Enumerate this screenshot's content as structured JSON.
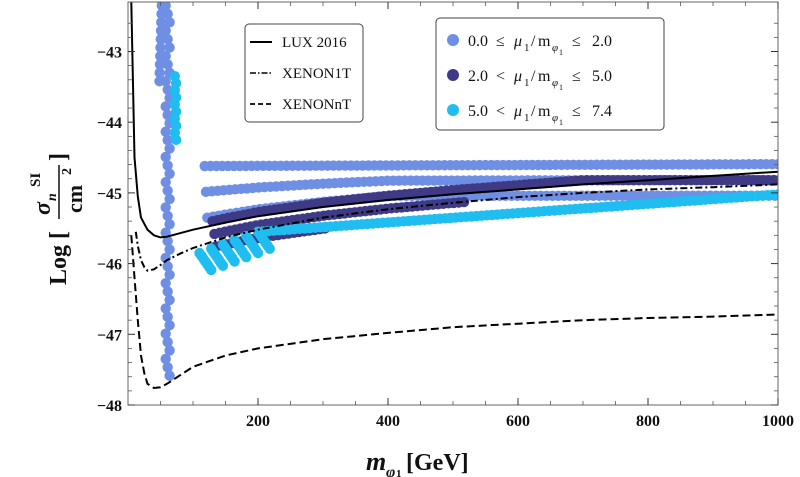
{
  "chart_data": {
    "type": "scatter",
    "xlabel": "m_φ1 [GeV]",
    "ylabel": "Log [σ_n^SI / cm^2]",
    "xlim": [
      0,
      1000
    ],
    "ylim": [
      -48,
      -42.3
    ],
    "x_ticks": [
      200,
      400,
      600,
      800,
      1000
    ],
    "y_ticks": [
      -48,
      -47,
      -46,
      -45,
      -44,
      -43
    ],
    "x_tick_labels": [
      "200",
      "400",
      "600",
      "800",
      "1000"
    ],
    "y_tick_labels": [
      "−48",
      "−47",
      "−46",
      "−45",
      "−44",
      "−43"
    ],
    "curves": [
      {
        "name": "LUX 2016",
        "style": "solid",
        "color": "#000000",
        "x": [
          5,
          10,
          15,
          20,
          30,
          40,
          50,
          60,
          80,
          100,
          150,
          200,
          300,
          400,
          500,
          600,
          700,
          800,
          900,
          1000
        ],
        "y": [
          -42.3,
          -44.5,
          -45.05,
          -45.35,
          -45.52,
          -45.6,
          -45.63,
          -45.62,
          -45.57,
          -45.52,
          -45.42,
          -45.33,
          -45.2,
          -45.1,
          -45.02,
          -44.95,
          -44.88,
          -44.82,
          -44.76,
          -44.7
        ]
      },
      {
        "name": "XENON1T",
        "style": "dashdot",
        "color": "#000000",
        "x": [
          12,
          15,
          20,
          25,
          30,
          40,
          50,
          60,
          80,
          100,
          150,
          200,
          300,
          400,
          500,
          600,
          700,
          800,
          900,
          1000
        ],
        "y": [
          -45.55,
          -45.75,
          -45.95,
          -46.05,
          -46.1,
          -46.08,
          -46.02,
          -45.95,
          -45.86,
          -45.78,
          -45.63,
          -45.52,
          -45.35,
          -45.23,
          -45.14,
          -45.06,
          -45.0,
          -44.95,
          -44.92,
          -44.88
        ]
      },
      {
        "name": "XENONnT",
        "style": "dashed",
        "color": "#000000",
        "x": [
          5,
          10,
          15,
          20,
          25,
          30,
          40,
          50,
          60,
          80,
          100,
          150,
          200,
          300,
          400,
          500,
          600,
          700,
          800,
          900,
          1000
        ],
        "y": [
          -45.6,
          -46.2,
          -46.8,
          -47.3,
          -47.55,
          -47.7,
          -47.76,
          -47.75,
          -47.7,
          -47.58,
          -47.46,
          -47.3,
          -47.2,
          -47.07,
          -46.98,
          -46.9,
          -46.85,
          -46.8,
          -46.77,
          -46.75,
          -46.72
        ]
      }
    ],
    "series": [
      {
        "name": "0.0 ≤ μ1/mφ1 ≤ 2.0",
        "color": "#6f8fe4"
      },
      {
        "name": "2.0 < μ1/mφ1 ≤ 5.0",
        "color": "#3f3a86"
      },
      {
        "name": "5.0 < μ1/mφ1 ≤ 7.4",
        "color": "#1fbdf0"
      }
    ]
  },
  "axes": {
    "x_title_main": "m",
    "x_title_sub": "φ",
    "x_title_subsub": "1",
    "x_title_unit": "[GeV]",
    "y_title_log": "Log [",
    "y_title_sigma": "σ",
    "y_title_n": "n",
    "y_title_si": "SI",
    "y_title_den": "cm",
    "y_title_pow": "2",
    "y_title_close": "]"
  },
  "legend_lines": {
    "lux": "LUX 2016",
    "xenon1t": "XENON1T",
    "xenonnt": "XENONnT"
  },
  "legend_points": {
    "s1": {
      "lo": "0.0",
      "op1": "≤",
      "mu": "μ",
      "mu_sub": "1",
      "slash": "/",
      "m": "m",
      "phi": "φ",
      "phi_sub": "1",
      "op2": "≤",
      "hi": "2.0"
    },
    "s2": {
      "lo": "2.0",
      "op1": "<",
      "mu": "μ",
      "mu_sub": "1",
      "slash": "/",
      "m": "m",
      "phi": "φ",
      "phi_sub": "1",
      "op2": "≤",
      "hi": "5.0"
    },
    "s3": {
      "lo": "5.0",
      "op1": "<",
      "mu": "μ",
      "mu_sub": "1",
      "slash": "/",
      "m": "m",
      "phi": "φ",
      "phi_sub": "1",
      "op2": "≤",
      "hi": "7.4"
    }
  }
}
